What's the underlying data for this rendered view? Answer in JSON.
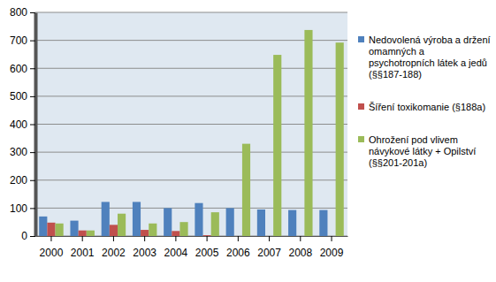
{
  "chart_data": {
    "type": "bar",
    "categories": [
      "2000",
      "2001",
      "2002",
      "2003",
      "2004",
      "2005",
      "2006",
      "2007",
      "2008",
      "2009"
    ],
    "series": [
      {
        "name": "Nedovolená výroba a držení omamných a psychotropních látek a jedů (§§187-188)",
        "color": "#4f81bd",
        "values": [
          70,
          55,
          122,
          122,
          100,
          118,
          100,
          95,
          93,
          93
        ]
      },
      {
        "name": "Šíření toxikomanie (§188a)",
        "color": "#c0504d",
        "values": [
          48,
          20,
          40,
          22,
          18,
          3,
          0,
          0,
          0,
          0
        ]
      },
      {
        "name": "Ohrožení pod vlivem návykové látky + Opilství (§§201-201a)",
        "color": "#9bbb59",
        "values": [
          45,
          20,
          80,
          45,
          50,
          85,
          330,
          648,
          737,
          692
        ]
      }
    ],
    "ylim": [
      0,
      800
    ],
    "yticks": [
      0,
      100,
      200,
      300,
      400,
      500,
      600,
      700,
      800
    ],
    "grid": true,
    "legend": "right"
  }
}
